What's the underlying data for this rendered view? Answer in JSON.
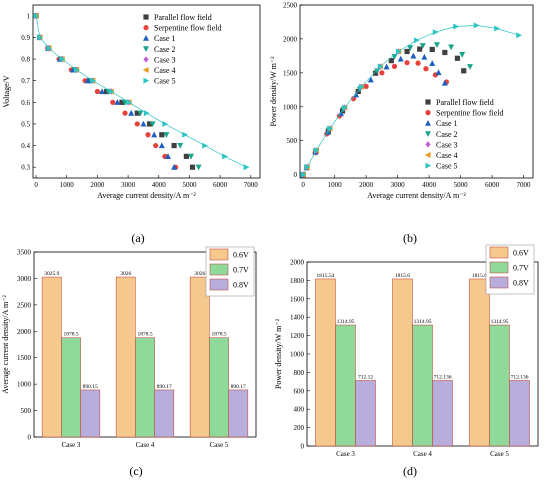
{
  "chart_data": [
    {
      "panel": "(a)",
      "type": "scatter",
      "xlabel": "Average current density/A m⁻²",
      "ylabel": "Voltage/V",
      "xlim": [
        -100,
        7300
      ],
      "ylim": [
        0.25,
        1.05
      ],
      "xticks": [
        0,
        1000,
        2000,
        3000,
        4000,
        5000,
        6000,
        7000
      ],
      "yticks": [
        0.3,
        0.4,
        0.5,
        0.6,
        0.7,
        0.8,
        0.9,
        1.0
      ],
      "legend_position": "top-right",
      "series": [
        {
          "name": "Parallel flow field",
          "marker": "square",
          "color": "#404040",
          "x": [
            0,
            120,
            400,
            800,
            1250,
            1750,
            2300,
            2800,
            3300,
            3700,
            4100,
            4500,
            4900,
            5100
          ],
          "y": [
            1.0,
            0.9,
            0.85,
            0.8,
            0.75,
            0.7,
            0.65,
            0.6,
            0.55,
            0.5,
            0.45,
            0.4,
            0.35,
            0.3
          ]
        },
        {
          "name": "Serpentine flow field",
          "marker": "circle",
          "color": "#e8413c",
          "x": [
            0,
            110,
            380,
            750,
            1150,
            1600,
            2000,
            2500,
            2900,
            3300,
            3650,
            3900,
            4200,
            4550
          ],
          "y": [
            1.0,
            0.9,
            0.85,
            0.8,
            0.75,
            0.7,
            0.65,
            0.6,
            0.55,
            0.5,
            0.45,
            0.4,
            0.35,
            0.3
          ]
        },
        {
          "name": "Case 1",
          "marker": "triangle-up",
          "color": "#1f5fbf",
          "x": [
            0,
            115,
            390,
            780,
            1200,
            1680,
            2150,
            2650,
            3100,
            3500,
            3850,
            4100,
            4300,
            4500
          ],
          "y": [
            1.0,
            0.9,
            0.85,
            0.8,
            0.75,
            0.7,
            0.65,
            0.6,
            0.55,
            0.5,
            0.45,
            0.4,
            0.35,
            0.3
          ]
        },
        {
          "name": "Case 2",
          "marker": "triangle-down",
          "color": "#1aa58a",
          "x": [
            0,
            120,
            410,
            820,
            1280,
            1800,
            2350,
            2900,
            3400,
            3800,
            4250,
            4700,
            5050,
            5300
          ],
          "y": [
            1.0,
            0.9,
            0.85,
            0.8,
            0.75,
            0.7,
            0.65,
            0.6,
            0.55,
            0.5,
            0.45,
            0.4,
            0.35,
            0.3
          ]
        },
        {
          "name": "Case 3",
          "marker": "diamond",
          "color": "#c25fd6",
          "x": [
            0,
            125,
            420,
            850,
            1320,
            1850,
            2450,
            3030
          ],
          "y": [
            1.0,
            0.9,
            0.85,
            0.8,
            0.75,
            0.7,
            0.65,
            0.6
          ]
        },
        {
          "name": "Case 4",
          "marker": "triangle-left",
          "color": "#e89a1a",
          "x": [
            0,
            125,
            420,
            850,
            1320,
            1850,
            2450,
            3030
          ],
          "y": [
            1.0,
            0.9,
            0.85,
            0.8,
            0.75,
            0.7,
            0.65,
            0.6
          ]
        },
        {
          "name": "Case 5",
          "marker": "triangle-right",
          "color": "#2cc4c4",
          "line": true,
          "x": [
            0,
            125,
            420,
            850,
            1320,
            1850,
            2450,
            3030,
            3600,
            4200,
            4850,
            5500,
            6150,
            6850
          ],
          "y": [
            1.0,
            0.9,
            0.85,
            0.8,
            0.75,
            0.7,
            0.65,
            0.6,
            0.55,
            0.5,
            0.45,
            0.4,
            0.35,
            0.3
          ]
        }
      ]
    },
    {
      "panel": "(b)",
      "type": "scatter",
      "xlabel": "Average current density/A m⁻²",
      "ylabel": "Power density/W m⁻²",
      "xlim": [
        -100,
        7300
      ],
      "ylim": [
        -50,
        2500
      ],
      "xticks": [
        0,
        1000,
        2000,
        3000,
        4000,
        5000,
        6000,
        7000
      ],
      "yticks": [
        0,
        500,
        1000,
        1500,
        2000,
        2500
      ],
      "legend_position": "bottom-right",
      "series": [
        {
          "name": "Parallel flow field",
          "marker": "square",
          "color": "#404040",
          "x": [
            0,
            120,
            400,
            800,
            1250,
            1750,
            2300,
            2800,
            3300,
            3700,
            4100,
            4500,
            4900,
            5100
          ],
          "y": [
            0,
            108,
            340,
            640,
            938,
            1225,
            1495,
            1680,
            1815,
            1850,
            1845,
            1800,
            1715,
            1530
          ]
        },
        {
          "name": "Serpentine flow field",
          "marker": "circle",
          "color": "#e8413c",
          "x": [
            0,
            110,
            380,
            750,
            1150,
            1600,
            2000,
            2500,
            2900,
            3300,
            3650,
            3900,
            4200,
            4550
          ],
          "y": [
            0,
            99,
            323,
            600,
            863,
            1120,
            1300,
            1500,
            1595,
            1650,
            1643,
            1560,
            1470,
            1365
          ]
        },
        {
          "name": "Case 1",
          "marker": "triangle-up",
          "color": "#1f5fbf",
          "x": [
            0,
            115,
            390,
            780,
            1200,
            1680,
            2150,
            2650,
            3100,
            3500,
            3850,
            4100,
            4300,
            4500
          ],
          "y": [
            0,
            104,
            332,
            624,
            900,
            1176,
            1398,
            1590,
            1705,
            1750,
            1733,
            1640,
            1505,
            1350
          ]
        },
        {
          "name": "Case 2",
          "marker": "triangle-down",
          "color": "#1aa58a",
          "x": [
            0,
            120,
            410,
            820,
            1280,
            1800,
            2350,
            2900,
            3400,
            3800,
            4250,
            4700,
            5050,
            5300
          ],
          "y": [
            0,
            108,
            349,
            656,
            960,
            1260,
            1528,
            1740,
            1870,
            1900,
            1913,
            1880,
            1768,
            1590
          ]
        },
        {
          "name": "Case 3",
          "marker": "diamond",
          "color": "#c25fd6",
          "x": [
            0,
            125,
            420,
            850,
            1320,
            1850,
            2450,
            3030
          ],
          "y": [
            0,
            113,
            357,
            680,
            990,
            1295,
            1593,
            1815
          ]
        },
        {
          "name": "Case 4",
          "marker": "triangle-left",
          "color": "#e89a1a",
          "x": [
            0,
            125,
            420,
            850,
            1320,
            1850,
            2450,
            3030
          ],
          "y": [
            0,
            113,
            357,
            680,
            990,
            1295,
            1593,
            1815
          ]
        },
        {
          "name": "Case 5",
          "marker": "triangle-right",
          "color": "#2cc4c4",
          "line": true,
          "x": [
            0,
            125,
            420,
            850,
            1320,
            1850,
            2450,
            3030,
            3600,
            4200,
            4850,
            5500,
            6150,
            6850
          ],
          "y": [
            0,
            113,
            357,
            680,
            990,
            1295,
            1593,
            1815,
            1980,
            2100,
            2183,
            2200,
            2153,
            2055
          ]
        }
      ]
    },
    {
      "panel": "(c)",
      "type": "bar",
      "xlabel": "",
      "ylabel": "Average current density/A m⁻²",
      "ylim": [
        0,
        3500
      ],
      "yticks": [
        0,
        500,
        1000,
        1500,
        2000,
        2500,
        3000,
        3500
      ],
      "categories": [
        "Case 3",
        "Case 4",
        "Case 5"
      ],
      "legend_position": "top-right",
      "series": [
        {
          "name": "0.6V",
          "color": "#f5c98e",
          "values": [
            3025.9,
            3026,
            3026
          ],
          "labels": [
            "3025.9",
            "3026",
            "3026"
          ]
        },
        {
          "name": "0.7V",
          "color": "#8fd99a",
          "values": [
            1878.5,
            1878.5,
            1878.5
          ],
          "labels": [
            "1878.5",
            "1878.5",
            "1878.5"
          ]
        },
        {
          "name": "0.8V",
          "color": "#b7aedb",
          "values": [
            890.15,
            890.17,
            890.17
          ],
          "labels": [
            "890.15",
            "890.17",
            "890.17"
          ]
        }
      ]
    },
    {
      "panel": "(d)",
      "type": "bar",
      "xlabel": "",
      "ylabel": "Power density/W m⁻²",
      "ylim": [
        0,
        2000
      ],
      "yticks": [
        0,
        200,
        400,
        600,
        800,
        1000,
        1200,
        1400,
        1600,
        1800,
        2000
      ],
      "categories": [
        "Case 3",
        "Case 4",
        "Case 5"
      ],
      "legend_position": "top-right",
      "series": [
        {
          "name": "0.6V",
          "color": "#f5c98e",
          "values": [
            1815.54,
            1815.6,
            1815.6
          ],
          "labels": [
            "1815.54",
            "1815.6",
            "1815.6"
          ]
        },
        {
          "name": "0.7V",
          "color": "#8fd99a",
          "values": [
            1314.95,
            1314.95,
            1314.95
          ],
          "labels": [
            "1314.95",
            "1314.95",
            "1314.95"
          ]
        },
        {
          "name": "0.8V",
          "color": "#b7aedb",
          "values": [
            712.12,
            712.136,
            712.136
          ],
          "labels": [
            "712.12",
            "712.136",
            "712.136"
          ]
        }
      ]
    }
  ]
}
